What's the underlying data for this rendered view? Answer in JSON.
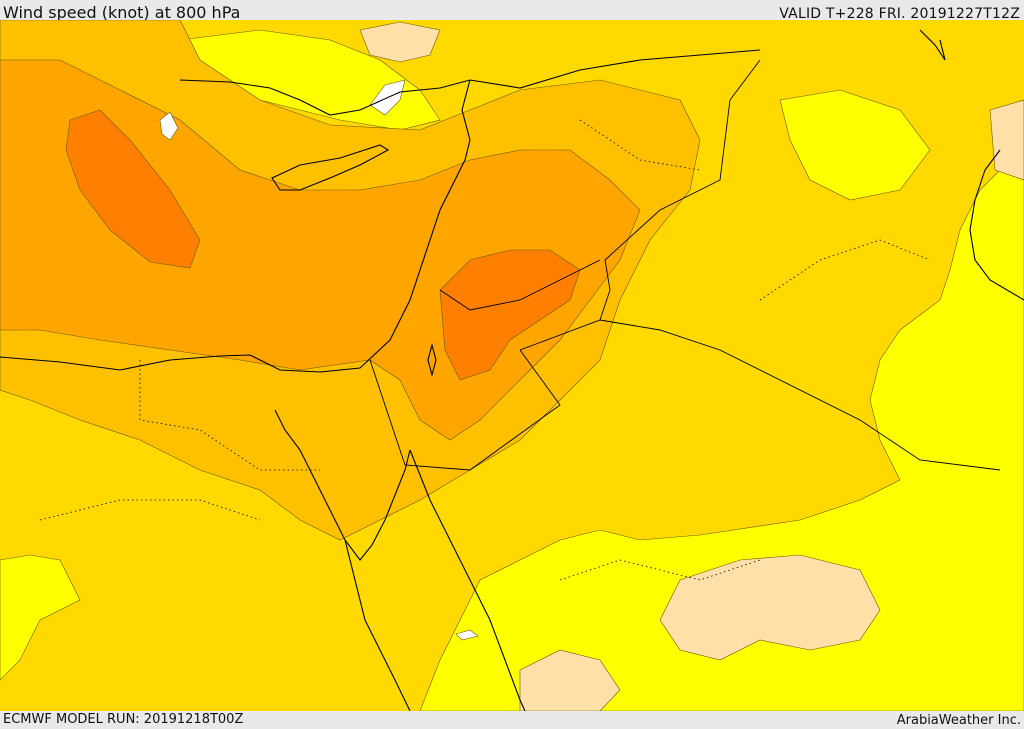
{
  "header": {
    "title": "Wind speed (knot) at 800 hPa",
    "valid": "VALID T+228 FRI. 20191227T12Z"
  },
  "footer": {
    "model_run": "ECMWF MODEL RUN: 20191218T00Z",
    "credit": "ArabiaWeather Inc."
  },
  "colors": {
    "band_weakest": "#ffffff",
    "band_low": "#ffe0a8",
    "band_yellow": "#ffff00",
    "band_gold": "#ffd900",
    "band_amber": "#ffc000",
    "band_orange": "#ffa500",
    "band_dark_orange": "#ff8000",
    "coastline": "#000000",
    "contour": "#6b5a00"
  }
}
